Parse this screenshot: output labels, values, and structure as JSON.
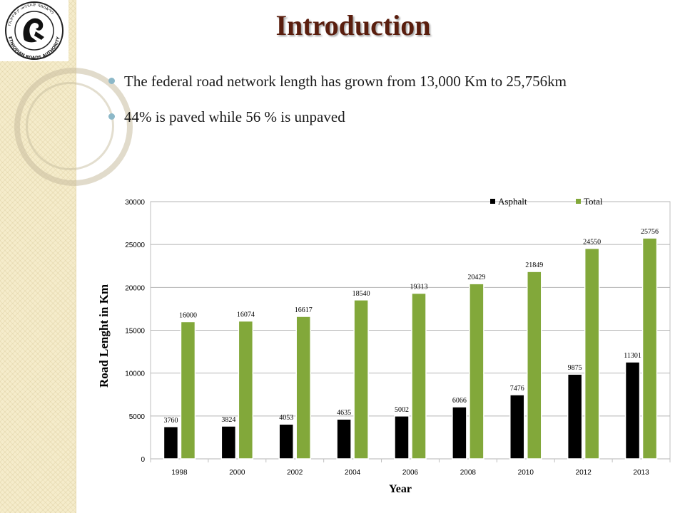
{
  "slide": {
    "title": "Introduction",
    "bullets": [
      "The federal road network length has grown from 13,000 Km to 25,756km",
      "44% is paved while 56 % is unpaved"
    ]
  },
  "logo": {
    "text": "የኢትዮጵያ መንገዶች ባለስልጣን ETHIOPIAN ROADS AUTHORITY"
  },
  "colors": {
    "asphalt": "#000000",
    "total": "#82a83a",
    "title": "#5a1e0e"
  },
  "chart_data": {
    "type": "bar",
    "categories": [
      "1998",
      "2000",
      "2002",
      "2004",
      "2006",
      "2008",
      "2010",
      "2012",
      "2013"
    ],
    "series": [
      {
        "name": "Asphalt",
        "values": [
          3760,
          3824,
          4053,
          4635,
          5002,
          6066,
          7476,
          9875,
          11301
        ]
      },
      {
        "name": "Total",
        "values": [
          16000,
          16074,
          16617,
          18540,
          19313,
          20429,
          21849,
          24550,
          25756
        ]
      }
    ],
    "title": "",
    "xlabel": "Year",
    "ylabel": "Road Lenght in Km",
    "ylim": [
      0,
      30000
    ],
    "yticks": [
      0,
      5000,
      10000,
      15000,
      20000,
      25000,
      30000
    ],
    "grid": true,
    "legend": "top-right"
  }
}
